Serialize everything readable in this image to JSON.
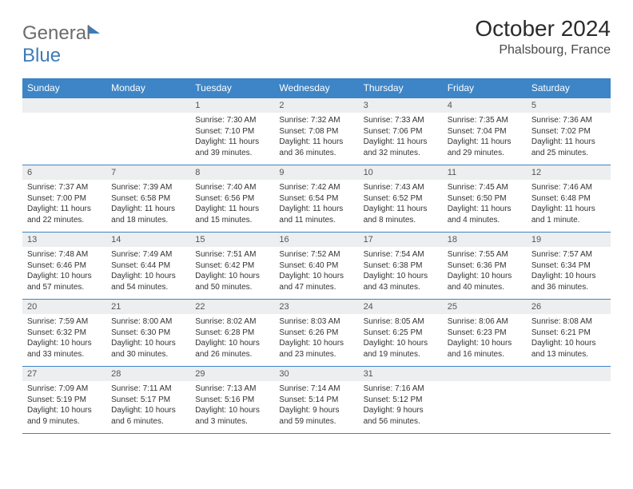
{
  "logo": {
    "text_gray": "General",
    "text_blue": "Blue"
  },
  "title": "October 2024",
  "location": "Phalsbourg, France",
  "colors": {
    "header_bg": "#3d85c6",
    "header_text": "#ffffff",
    "daynum_bg": "#eceeef",
    "border": "#3d85c6",
    "logo_gray": "#6b6b6b",
    "logo_blue": "#3d7bb8",
    "body_text": "#333333"
  },
  "typography": {
    "title_fontsize": 28,
    "location_fontsize": 16,
    "dow_fontsize": 12,
    "daynum_fontsize": 11,
    "body_fontsize": 10
  },
  "days_of_week": [
    "Sunday",
    "Monday",
    "Tuesday",
    "Wednesday",
    "Thursday",
    "Friday",
    "Saturday"
  ],
  "weeks": [
    [
      null,
      null,
      {
        "n": "1",
        "sunrise": "7:30 AM",
        "sunset": "7:10 PM",
        "daylight": "11 hours and 39 minutes."
      },
      {
        "n": "2",
        "sunrise": "7:32 AM",
        "sunset": "7:08 PM",
        "daylight": "11 hours and 36 minutes."
      },
      {
        "n": "3",
        "sunrise": "7:33 AM",
        "sunset": "7:06 PM",
        "daylight": "11 hours and 32 minutes."
      },
      {
        "n": "4",
        "sunrise": "7:35 AM",
        "sunset": "7:04 PM",
        "daylight": "11 hours and 29 minutes."
      },
      {
        "n": "5",
        "sunrise": "7:36 AM",
        "sunset": "7:02 PM",
        "daylight": "11 hours and 25 minutes."
      }
    ],
    [
      {
        "n": "6",
        "sunrise": "7:37 AM",
        "sunset": "7:00 PM",
        "daylight": "11 hours and 22 minutes."
      },
      {
        "n": "7",
        "sunrise": "7:39 AM",
        "sunset": "6:58 PM",
        "daylight": "11 hours and 18 minutes."
      },
      {
        "n": "8",
        "sunrise": "7:40 AM",
        "sunset": "6:56 PM",
        "daylight": "11 hours and 15 minutes."
      },
      {
        "n": "9",
        "sunrise": "7:42 AM",
        "sunset": "6:54 PM",
        "daylight": "11 hours and 11 minutes."
      },
      {
        "n": "10",
        "sunrise": "7:43 AM",
        "sunset": "6:52 PM",
        "daylight": "11 hours and 8 minutes."
      },
      {
        "n": "11",
        "sunrise": "7:45 AM",
        "sunset": "6:50 PM",
        "daylight": "11 hours and 4 minutes."
      },
      {
        "n": "12",
        "sunrise": "7:46 AM",
        "sunset": "6:48 PM",
        "daylight": "11 hours and 1 minute."
      }
    ],
    [
      {
        "n": "13",
        "sunrise": "7:48 AM",
        "sunset": "6:46 PM",
        "daylight": "10 hours and 57 minutes."
      },
      {
        "n": "14",
        "sunrise": "7:49 AM",
        "sunset": "6:44 PM",
        "daylight": "10 hours and 54 minutes."
      },
      {
        "n": "15",
        "sunrise": "7:51 AM",
        "sunset": "6:42 PM",
        "daylight": "10 hours and 50 minutes."
      },
      {
        "n": "16",
        "sunrise": "7:52 AM",
        "sunset": "6:40 PM",
        "daylight": "10 hours and 47 minutes."
      },
      {
        "n": "17",
        "sunrise": "7:54 AM",
        "sunset": "6:38 PM",
        "daylight": "10 hours and 43 minutes."
      },
      {
        "n": "18",
        "sunrise": "7:55 AM",
        "sunset": "6:36 PM",
        "daylight": "10 hours and 40 minutes."
      },
      {
        "n": "19",
        "sunrise": "7:57 AM",
        "sunset": "6:34 PM",
        "daylight": "10 hours and 36 minutes."
      }
    ],
    [
      {
        "n": "20",
        "sunrise": "7:59 AM",
        "sunset": "6:32 PM",
        "daylight": "10 hours and 33 minutes."
      },
      {
        "n": "21",
        "sunrise": "8:00 AM",
        "sunset": "6:30 PM",
        "daylight": "10 hours and 30 minutes."
      },
      {
        "n": "22",
        "sunrise": "8:02 AM",
        "sunset": "6:28 PM",
        "daylight": "10 hours and 26 minutes."
      },
      {
        "n": "23",
        "sunrise": "8:03 AM",
        "sunset": "6:26 PM",
        "daylight": "10 hours and 23 minutes."
      },
      {
        "n": "24",
        "sunrise": "8:05 AM",
        "sunset": "6:25 PM",
        "daylight": "10 hours and 19 minutes."
      },
      {
        "n": "25",
        "sunrise": "8:06 AM",
        "sunset": "6:23 PM",
        "daylight": "10 hours and 16 minutes."
      },
      {
        "n": "26",
        "sunrise": "8:08 AM",
        "sunset": "6:21 PM",
        "daylight": "10 hours and 13 minutes."
      }
    ],
    [
      {
        "n": "27",
        "sunrise": "7:09 AM",
        "sunset": "5:19 PM",
        "daylight": "10 hours and 9 minutes."
      },
      {
        "n": "28",
        "sunrise": "7:11 AM",
        "sunset": "5:17 PM",
        "daylight": "10 hours and 6 minutes."
      },
      {
        "n": "29",
        "sunrise": "7:13 AM",
        "sunset": "5:16 PM",
        "daylight": "10 hours and 3 minutes."
      },
      {
        "n": "30",
        "sunrise": "7:14 AM",
        "sunset": "5:14 PM",
        "daylight": "9 hours and 59 minutes."
      },
      {
        "n": "31",
        "sunrise": "7:16 AM",
        "sunset": "5:12 PM",
        "daylight": "9 hours and 56 minutes."
      },
      null,
      null
    ]
  ],
  "labels": {
    "sunrise": "Sunrise:",
    "sunset": "Sunset:",
    "daylight": "Daylight:"
  }
}
